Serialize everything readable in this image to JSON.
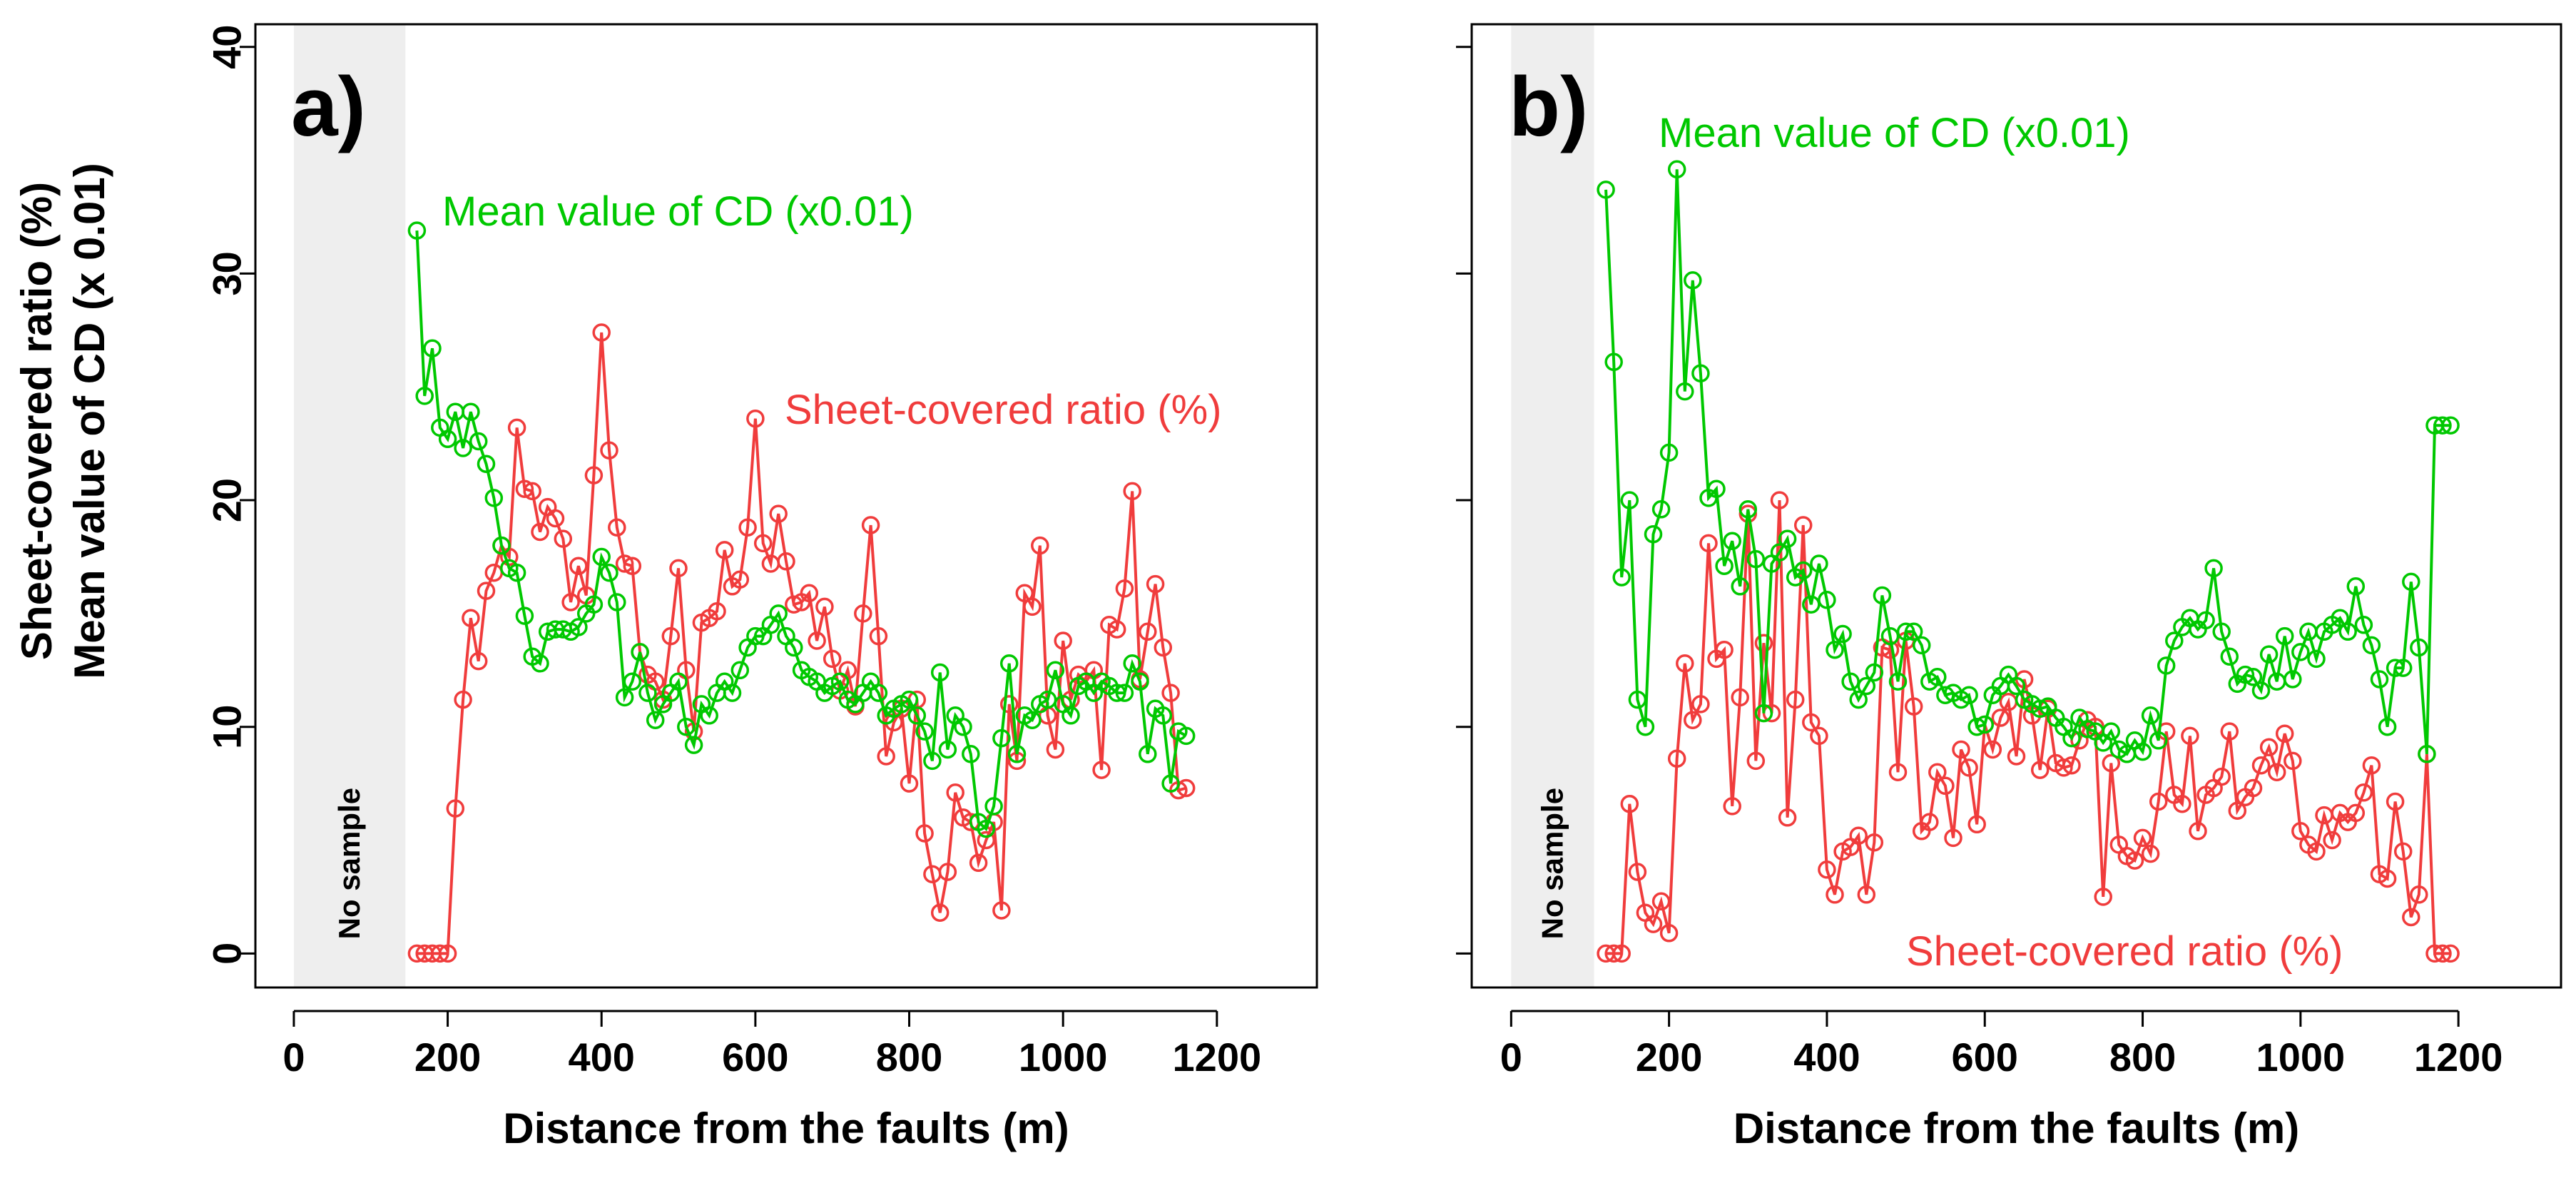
{
  "figure": {
    "shared_ylabel_line1": "Sheet-covered ratio (%)",
    "shared_ylabel_line2": "Mean value of CD (x 0.01)"
  },
  "colors": {
    "cd": "#00c800",
    "sheet": "#f03c3c",
    "nosample_fill": "#eeeeee",
    "axis": "#000000"
  },
  "chart_data": [
    {
      "type": "line",
      "panel_label": "a)",
      "xlabel": "Distance from the faults (m)",
      "ylabel": "Sheet-covered ratio (%) / Mean value of CD (x 0.01)",
      "xlim": [
        -50,
        1330
      ],
      "ylim": [
        -1.5,
        41
      ],
      "xticks": [
        0,
        200,
        400,
        600,
        800,
        1000,
        1200
      ],
      "yticks": [
        0,
        10,
        20,
        30,
        40
      ],
      "no_sample_region": [
        0,
        145
      ],
      "no_sample_label": "No sample",
      "annotations": [
        {
          "text": "Mean value of CD (x0.01)",
          "series": "cd"
        },
        {
          "text": "Sheet-covered ratio (%)",
          "series": "sheet"
        }
      ],
      "series": [
        {
          "key": "cd",
          "name": "Mean value of CD (x0.01)",
          "x": [
            160,
            170,
            180,
            190,
            200,
            210,
            220,
            230,
            240,
            250,
            260,
            270,
            280,
            290,
            300,
            310,
            320,
            330,
            340,
            350,
            360,
            370,
            380,
            390,
            400,
            410,
            420,
            430,
            440,
            450,
            460,
            470,
            480,
            490,
            500,
            510,
            520,
            530,
            540,
            550,
            560,
            570,
            580,
            590,
            600,
            610,
            620,
            630,
            640,
            650,
            660,
            670,
            680,
            690,
            700,
            710,
            720,
            730,
            740,
            750,
            760,
            770,
            780,
            790,
            800,
            810,
            820,
            830,
            840,
            850,
            860,
            870,
            880,
            890,
            900,
            910,
            920,
            930,
            940,
            950,
            960,
            970,
            980,
            990,
            1000,
            1010,
            1020,
            1030,
            1040,
            1050,
            1060,
            1070,
            1080,
            1090,
            1100,
            1110,
            1120,
            1130,
            1140,
            1150,
            1160
          ],
          "y": [
            31.9,
            24.6,
            26.7,
            23.2,
            22.7,
            23.9,
            22.3,
            23.9,
            22.6,
            21.6,
            20.1,
            18.0,
            17.0,
            16.8,
            14.9,
            13.1,
            12.8,
            14.2,
            14.3,
            14.3,
            14.2,
            14.4,
            15.0,
            15.4,
            17.5,
            16.8,
            15.5,
            11.3,
            12.0,
            13.3,
            11.5,
            10.3,
            11.0,
            11.5,
            12.0,
            10.0,
            9.2,
            11.0,
            10.5,
            11.5,
            12.0,
            11.5,
            12.5,
            13.5,
            14.0,
            14.0,
            14.5,
            15.0,
            14.0,
            13.5,
            12.5,
            12.2,
            12.0,
            11.5,
            11.8,
            12.0,
            11.2,
            11.0,
            11.5,
            12.0,
            11.5,
            10.5,
            10.8,
            11.0,
            11.2,
            10.5,
            9.8,
            8.5,
            12.4,
            9.0,
            10.5,
            10.0,
            8.8,
            5.8,
            5.5,
            6.5,
            9.5,
            12.8,
            8.8,
            10.5,
            10.3,
            11.0,
            11.2,
            12.5,
            11.0,
            10.5,
            11.8,
            12.0,
            11.5,
            12.0,
            11.8,
            11.5,
            11.5,
            12.8,
            12.0,
            8.8,
            10.8,
            10.5,
            7.5,
            9.8,
            9.6
          ]
        },
        {
          "key": "sheet",
          "name": "Sheet-covered ratio (%)",
          "x": [
            160,
            170,
            180,
            190,
            200,
            210,
            220,
            230,
            240,
            250,
            260,
            270,
            280,
            290,
            300,
            310,
            320,
            330,
            340,
            350,
            360,
            370,
            380,
            390,
            400,
            410,
            420,
            430,
            440,
            450,
            460,
            470,
            480,
            490,
            500,
            510,
            520,
            530,
            540,
            550,
            560,
            570,
            580,
            590,
            600,
            610,
            620,
            630,
            640,
            650,
            660,
            670,
            680,
            690,
            700,
            710,
            720,
            730,
            740,
            750,
            760,
            770,
            780,
            790,
            800,
            810,
            820,
            830,
            840,
            850,
            860,
            870,
            880,
            890,
            900,
            910,
            920,
            930,
            940,
            950,
            960,
            970,
            980,
            990,
            1000,
            1010,
            1020,
            1030,
            1040,
            1050,
            1060,
            1070,
            1080,
            1090,
            1100,
            1110,
            1120,
            1130,
            1140,
            1150,
            1160
          ],
          "y": [
            0,
            0,
            0,
            0,
            0,
            6.4,
            11.2,
            14.8,
            12.9,
            16.0,
            16.8,
            18.0,
            17.5,
            23.2,
            20.5,
            20.4,
            18.6,
            19.7,
            19.2,
            18.3,
            15.5,
            17.1,
            15.8,
            21.1,
            27.4,
            22.2,
            18.8,
            17.2,
            17.1,
            13.3,
            12.3,
            12.0,
            11.2,
            14.0,
            17.0,
            12.5,
            9.8,
            14.6,
            14.8,
            15.1,
            17.8,
            16.2,
            16.5,
            18.8,
            23.6,
            18.1,
            17.2,
            19.4,
            17.3,
            15.4,
            15.5,
            15.9,
            13.8,
            15.3,
            13.0,
            11.6,
            12.5,
            10.9,
            15.0,
            18.9,
            14.0,
            8.7,
            10.2,
            10.8,
            7.5,
            11.2,
            5.3,
            3.5,
            1.8,
            3.6,
            7.1,
            6.0,
            5.8,
            4.0,
            5.0,
            5.8,
            1.9,
            11.0,
            8.5,
            15.9,
            15.3,
            18.0,
            10.5,
            9.0,
            13.8,
            11.2,
            12.3,
            12.0,
            12.5,
            8.1,
            14.5,
            14.3,
            16.1,
            20.4,
            12.1,
            14.2,
            16.3,
            13.5,
            11.5,
            7.2,
            7.3
          ]
        }
      ]
    },
    {
      "type": "line",
      "panel_label": "b)",
      "xlabel": "Distance from the faults (m)",
      "ylabel": "",
      "xlim": [
        -50,
        1330
      ],
      "ylim": [
        -1.5,
        41
      ],
      "xticks": [
        0,
        200,
        400,
        600,
        800,
        1000,
        1200
      ],
      "yticks": [
        0,
        10,
        20,
        30,
        40
      ],
      "no_sample_region": [
        0,
        105
      ],
      "no_sample_label": "No sample",
      "annotations": [
        {
          "text": "Mean value of CD (x0.01)",
          "series": "cd"
        },
        {
          "text": "Sheet-covered ratio (%)",
          "series": "sheet"
        }
      ],
      "series": [
        {
          "key": "cd",
          "name": "Mean value of CD (x0.01)",
          "x": [
            120,
            130,
            140,
            150,
            160,
            170,
            180,
            190,
            200,
            210,
            220,
            230,
            240,
            250,
            260,
            270,
            280,
            290,
            300,
            310,
            320,
            330,
            340,
            350,
            360,
            370,
            380,
            390,
            400,
            410,
            420,
            430,
            440,
            450,
            460,
            470,
            480,
            490,
            500,
            510,
            520,
            530,
            540,
            550,
            560,
            570,
            580,
            590,
            600,
            610,
            620,
            630,
            640,
            650,
            660,
            670,
            680,
            690,
            700,
            710,
            720,
            730,
            740,
            750,
            760,
            770,
            780,
            790,
            800,
            810,
            820,
            830,
            840,
            850,
            860,
            870,
            880,
            890,
            900,
            910,
            920,
            930,
            940,
            950,
            960,
            970,
            980,
            990,
            1000,
            1010,
            1020,
            1030,
            1040,
            1050,
            1060,
            1070,
            1080,
            1090,
            1100,
            1110,
            1120,
            1130,
            1140,
            1150,
            1160,
            1170,
            1180,
            1190
          ],
          "y": [
            33.7,
            26.1,
            16.6,
            20.0,
            11.2,
            10.0,
            18.5,
            19.6,
            22.1,
            34.6,
            24.8,
            29.7,
            25.6,
            20.1,
            20.5,
            17.1,
            18.2,
            16.2,
            19.6,
            17.4,
            10.6,
            17.2,
            17.7,
            18.3,
            16.6,
            16.9,
            15.4,
            17.2,
            15.6,
            13.4,
            14.1,
            12.0,
            11.2,
            11.8,
            12.4,
            15.8,
            14.0,
            12.0,
            14.2,
            14.2,
            13.6,
            12.0,
            12.2,
            11.4,
            11.5,
            11.2,
            11.4,
            10.0,
            10.1,
            11.4,
            11.8,
            12.3,
            11.8,
            11.2,
            11.0,
            10.8,
            10.9,
            10.4,
            10.0,
            9.5,
            10.4,
            9.9,
            9.8,
            9.3,
            9.8,
            9.0,
            8.8,
            9.4,
            8.9,
            10.5,
            9.4,
            12.7,
            13.8,
            14.4,
            14.8,
            14.3,
            14.7,
            17.0,
            14.2,
            13.1,
            11.9,
            12.3,
            12.2,
            11.6,
            13.2,
            12.0,
            14.0,
            12.1,
            13.3,
            14.2,
            13.0,
            14.2,
            14.5,
            14.8,
            14.2,
            16.2,
            14.5,
            13.6,
            12.1,
            10.0,
            12.6,
            12.6,
            16.4,
            13.5,
            8.8,
            23.3,
            23.3,
            23.3
          ]
        },
        {
          "key": "sheet",
          "name": "Sheet-covered ratio (%)",
          "x": [
            120,
            130,
            140,
            150,
            160,
            170,
            180,
            190,
            200,
            210,
            220,
            230,
            240,
            250,
            260,
            270,
            280,
            290,
            300,
            310,
            320,
            330,
            340,
            350,
            360,
            370,
            380,
            390,
            400,
            410,
            420,
            430,
            440,
            450,
            460,
            470,
            480,
            490,
            500,
            510,
            520,
            530,
            540,
            550,
            560,
            570,
            580,
            590,
            600,
            610,
            620,
            630,
            640,
            650,
            660,
            670,
            680,
            690,
            700,
            710,
            720,
            730,
            740,
            750,
            760,
            770,
            780,
            790,
            800,
            810,
            820,
            830,
            840,
            850,
            860,
            870,
            880,
            890,
            900,
            910,
            920,
            930,
            940,
            950,
            960,
            970,
            980,
            990,
            1000,
            1010,
            1020,
            1030,
            1040,
            1050,
            1060,
            1070,
            1080,
            1090,
            1100,
            1110,
            1120,
            1130,
            1140,
            1150,
            1160,
            1170,
            1180,
            1190
          ],
          "y": [
            0,
            0,
            0,
            6.6,
            3.6,
            1.8,
            1.3,
            2.3,
            0.9,
            8.6,
            12.8,
            10.3,
            11.0,
            18.1,
            13.0,
            13.4,
            6.5,
            11.3,
            19.4,
            8.5,
            13.7,
            10.6,
            20.0,
            6.0,
            11.2,
            18.9,
            10.2,
            9.6,
            3.7,
            2.6,
            4.5,
            4.7,
            5.2,
            2.6,
            4.9,
            13.5,
            13.4,
            8.0,
            13.8,
            10.9,
            5.4,
            5.8,
            8.0,
            7.4,
            5.1,
            9.0,
            8.2,
            5.7,
            10.1,
            9.0,
            10.4,
            11.1,
            8.7,
            12.1,
            10.5,
            8.1,
            10.8,
            8.4,
            8.2,
            8.3,
            9.4,
            10.3,
            10.0,
            2.5,
            8.4,
            4.8,
            4.3,
            4.1,
            5.1,
            4.4,
            6.7,
            9.8,
            7.0,
            6.6,
            9.6,
            5.4,
            7.0,
            7.3,
            7.8,
            9.8,
            6.3,
            6.9,
            7.3,
            8.3,
            9.1,
            8.0,
            9.7,
            8.5,
            5.4,
            4.8,
            4.5,
            6.1,
            5.0,
            6.2,
            5.8,
            6.2,
            7.1,
            8.3,
            3.5,
            3.3,
            6.7,
            4.5,
            1.6,
            2.6,
            8.8,
            0,
            0,
            0
          ]
        }
      ]
    }
  ]
}
